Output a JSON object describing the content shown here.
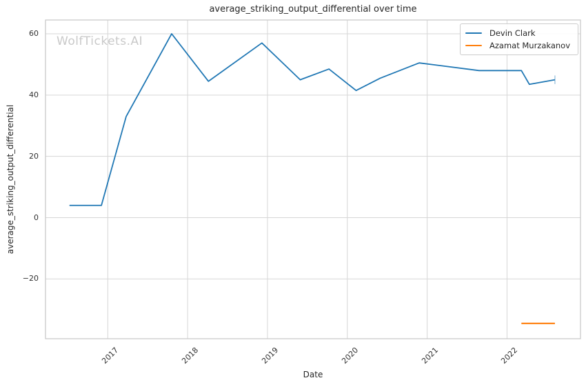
{
  "figure": {
    "watermark": "WolfTickets.AI"
  },
  "chart_data": {
    "type": "line",
    "title": "average_striking_output_differential over time",
    "xlabel": "Date",
    "ylabel": "average_striking_output_differential",
    "grid": true,
    "legend_position": "upper right",
    "xlim": [
      2016.22,
      2022.92
    ],
    "ylim": [
      -39.5,
      64.5
    ],
    "x_ticks": [
      2017,
      2018,
      2019,
      2020,
      2021,
      2022
    ],
    "x_tick_labels": [
      "2017",
      "2018",
      "2019",
      "2020",
      "2021",
      "2022"
    ],
    "y_ticks": [
      60,
      40,
      20,
      0,
      -20
    ],
    "y_tick_labels": [
      "60",
      "40",
      "20",
      "0",
      "−20"
    ],
    "series": [
      {
        "name": "Devin Clark",
        "color": "#1f77b4",
        "x": [
          2016.52,
          2016.92,
          2017.23,
          2017.8,
          2018.26,
          2018.93,
          2019.41,
          2019.77,
          2020.11,
          2020.41,
          2020.9,
          2021.65,
          2022.18,
          2022.28,
          2022.6
        ],
        "y": [
          4,
          4,
          33,
          60,
          44.5,
          57,
          45,
          48.5,
          41.5,
          45.5,
          50.5,
          48,
          48,
          43.5,
          45
        ],
        "end_tick": {
          "x": 2022.6,
          "y_from": 43.6,
          "y_to": 46.4
        }
      },
      {
        "name": "Azamat Murzakanov",
        "color": "#ff7f0e",
        "x": [
          2022.18,
          2022.6
        ],
        "y": [
          -34.5,
          -34.5
        ]
      }
    ]
  }
}
